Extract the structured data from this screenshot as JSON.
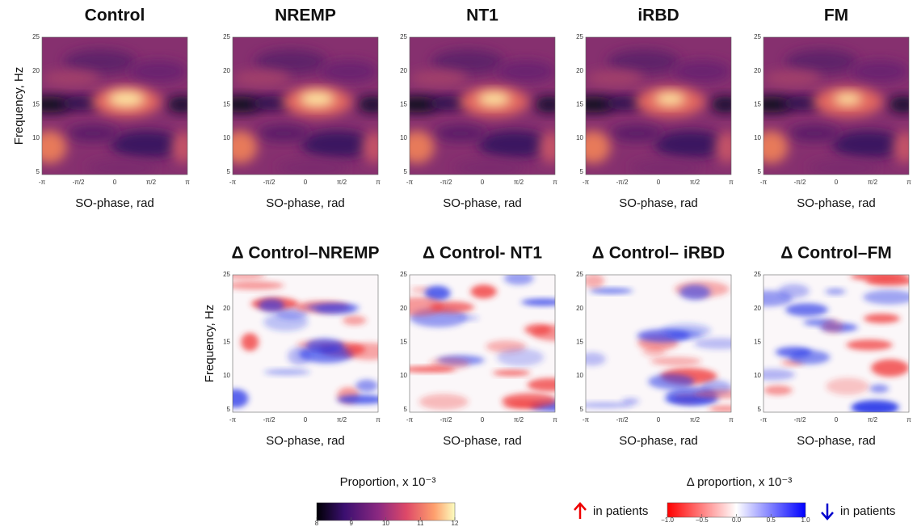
{
  "top_panels": [
    {
      "title": "Control"
    },
    {
      "title": "NREMP"
    },
    {
      "title": "NT1"
    },
    {
      "title": "iRBD"
    },
    {
      "title": "FM"
    }
  ],
  "bottom_panels": [
    {
      "title": "Δ Control–NREMP"
    },
    {
      "title": "Δ Control- NT1"
    },
    {
      "title": "Δ Control– iRBD"
    },
    {
      "title": "Δ Control–FM"
    }
  ],
  "y_axis_label": "Frequency, Hz",
  "x_axis_label": "SO-phase, rad",
  "y_ticks": [
    5,
    10,
    15,
    20,
    25
  ],
  "x_ticks": [
    "-π",
    "-π/2",
    "0",
    "π/2",
    "π"
  ],
  "colorbar": {
    "title": "Proportion, x 10⁻³",
    "lim": [
      8,
      12
    ],
    "ticks": [
      8,
      9,
      10,
      11,
      12
    ]
  },
  "delta_colorbar": {
    "title": "Δ proportion, x 10⁻³",
    "lim": [
      -1,
      1
    ],
    "ticks": [
      {
        "value": -1,
        "label": "−1.0"
      },
      {
        "value": -0.5,
        "label": "−0.5"
      },
      {
        "value": 0,
        "label": "0.0"
      },
      {
        "value": 0.5,
        "label": "0.5"
      },
      {
        "value": 1,
        "label": "1.0"
      }
    ],
    "increase_label": "in patients",
    "decrease_label": "in patients"
  }
}
